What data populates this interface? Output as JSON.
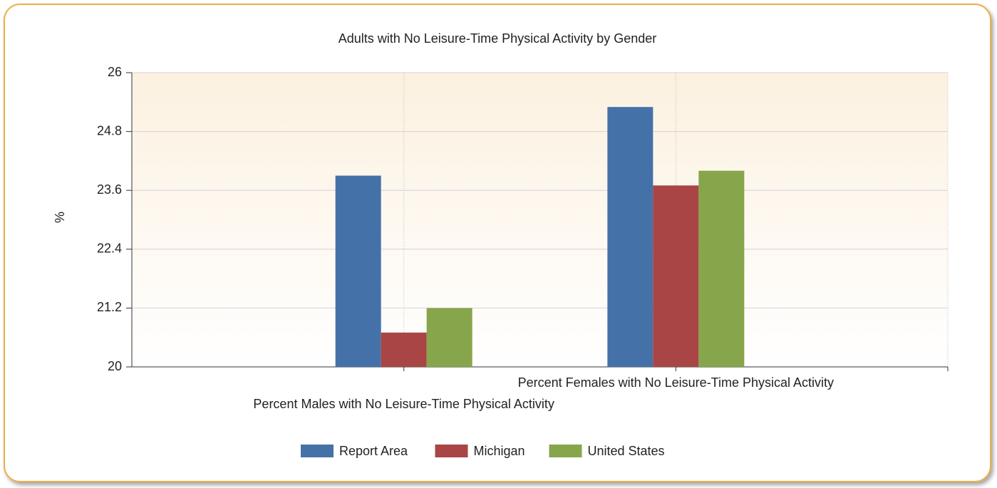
{
  "chart_data": {
    "type": "bar",
    "title": "Adults with No Leisure-Time Physical Activity by Gender",
    "y_label": "%",
    "categories": [
      "Percent Males with No Leisure-Time Physical Activity",
      "Percent Females with No Leisure-Time Physical Activity"
    ],
    "series": [
      {
        "name": "Report Area",
        "color": "#4472a8",
        "values": [
          23.9,
          25.3
        ]
      },
      {
        "name": "Michigan",
        "color": "#a94544",
        "values": [
          20.7,
          23.7
        ]
      },
      {
        "name": "United States",
        "color": "#87a54a",
        "values": [
          21.2,
          24.0
        ]
      }
    ],
    "ylim": [
      20,
      26
    ],
    "yticks": [
      20,
      21.2,
      22.4,
      23.6,
      24.8,
      26
    ],
    "grid": true,
    "legend": "bottom"
  }
}
